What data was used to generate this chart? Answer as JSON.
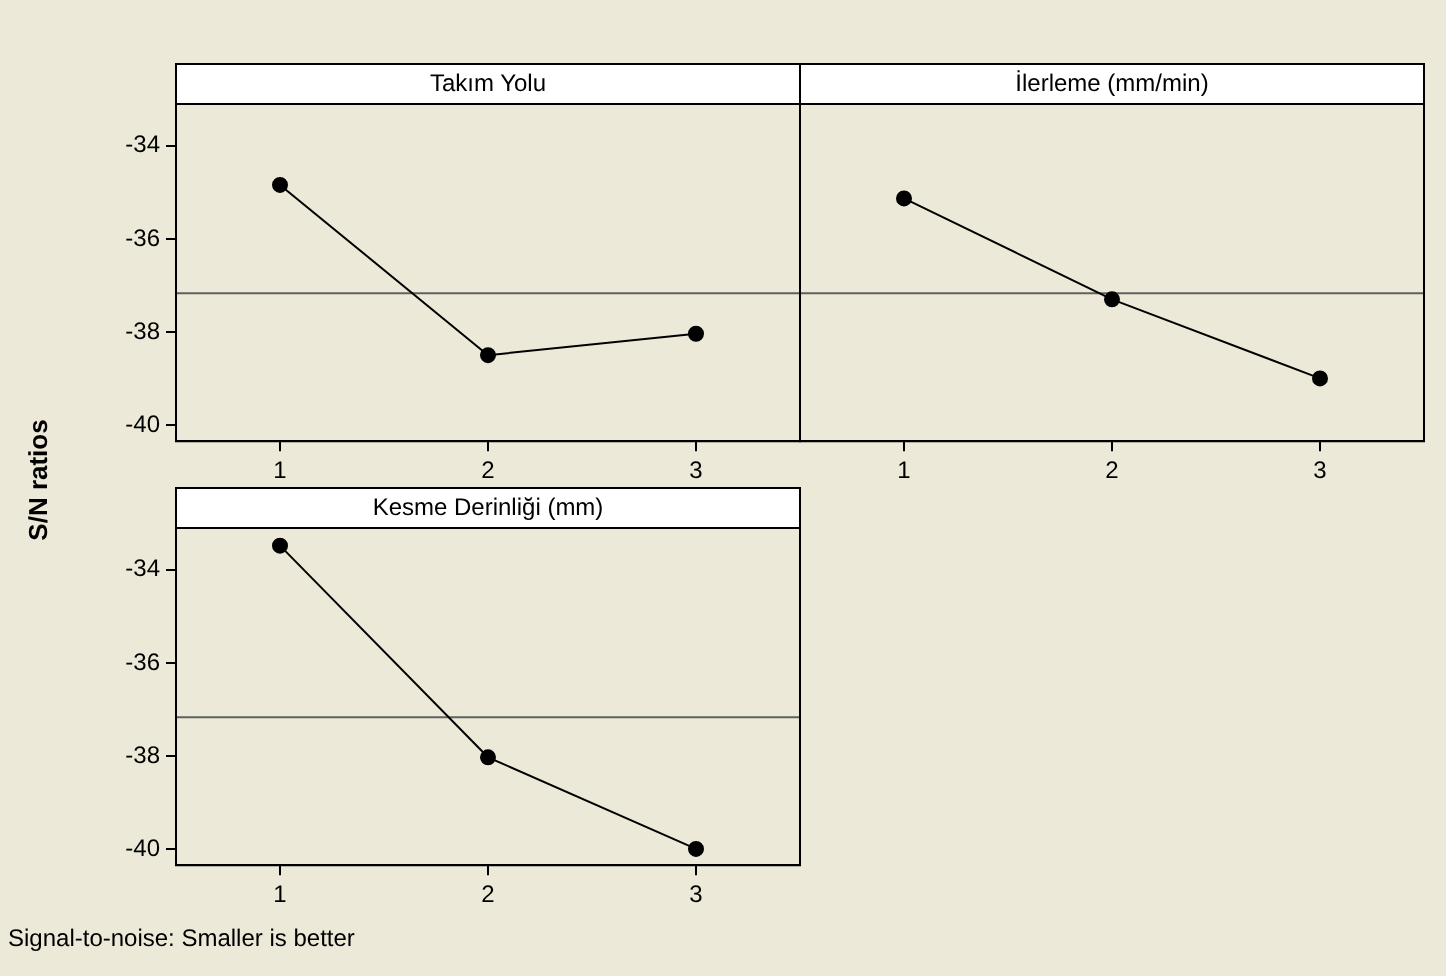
{
  "chart_data": [
    {
      "type": "line",
      "title": "Takım Yolu",
      "ylabel": "S/N ratios",
      "x": [
        1,
        2,
        3
      ],
      "xlim": [
        0.5,
        3.5
      ],
      "xticks": [
        1,
        2,
        3
      ],
      "ylim": [
        -40.35,
        -33.1
      ],
      "yticks": [
        -40,
        -38,
        -36,
        -34
      ],
      "grid": false,
      "legend": false,
      "marker": "circle",
      "line_style": "solid",
      "series": [
        {
          "color": "#000000",
          "values": [
            -34.84,
            -38.5,
            -38.04
          ]
        }
      ],
      "ref_lines": [
        {
          "axis": "y",
          "value": -37.17,
          "color": "#606060"
        }
      ]
    },
    {
      "type": "line",
      "title": "İlerleme (mm/min)",
      "x": [
        1,
        2,
        3
      ],
      "xlim": [
        0.5,
        3.5
      ],
      "xticks": [
        1,
        2,
        3
      ],
      "ylim": [
        -40.35,
        -33.1
      ],
      "yticks": [
        -40,
        -38,
        -36,
        -34
      ],
      "tick_labels": "x",
      "grid": false,
      "legend": false,
      "marker": "circle",
      "line_style": "solid",
      "series": [
        {
          "color": "#000000",
          "values": [
            -35.13,
            -37.3,
            -39.0
          ]
        }
      ],
      "ref_lines": [
        {
          "axis": "y",
          "value": -37.17,
          "color": "#606060"
        }
      ]
    },
    {
      "type": "line",
      "title": "Kesme Derinliği (mm)",
      "x": [
        1,
        2,
        3
      ],
      "xlim": [
        0.5,
        3.5
      ],
      "xticks": [
        1,
        2,
        3
      ],
      "ylim": [
        -40.35,
        -33.1
      ],
      "yticks": [
        -40,
        -38,
        -36,
        -34
      ],
      "grid": false,
      "legend": false,
      "marker": "circle",
      "line_style": "solid",
      "series": [
        {
          "color": "#000000",
          "values": [
            -33.48,
            -38.03,
            -40.0
          ]
        }
      ],
      "ref_lines": [
        {
          "axis": "y",
          "value": -37.17,
          "color": "#606060"
        }
      ],
      "annotations": [
        "Signal-to-noise: Smaller is better"
      ]
    }
  ]
}
